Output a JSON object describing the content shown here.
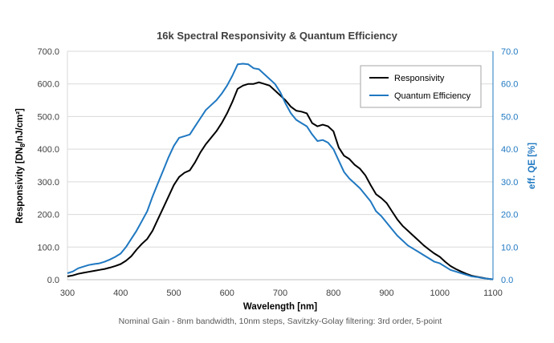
{
  "chart_data": {
    "type": "line",
    "title": "16k Spectral Responsivity & Quantum Efficiency",
    "footnote": "Nominal Gain - 8nm bandwidth, 10nm steps, Savitzky-Golay filtering: 3rd order, 5-point",
    "xlabel": "Wavelength [nm]",
    "ylabel_left_main": "Responsivity [DN",
    "ylabel_left_sub": "8",
    "ylabel_left_tail": "/nJ/cm²]",
    "ylabel_right": "eff. QE [%]",
    "xlim": [
      300,
      1100
    ],
    "xticks": [
      "300",
      "400",
      "500",
      "600",
      "700",
      "800",
      "900",
      "1000",
      "1100"
    ],
    "ylim_left": [
      0,
      700
    ],
    "yticks_left": [
      "0.0",
      "100.0",
      "200.0",
      "300.0",
      "400.0",
      "500.0",
      "600.0",
      "700.0"
    ],
    "ylim_right": [
      0,
      70
    ],
    "yticks_right": [
      "0.0",
      "10.0",
      "20.0",
      "30.0",
      "40.0",
      "50.0",
      "60.0",
      "70.0"
    ],
    "grid": "horizontal",
    "legend_position": "top-right",
    "x": [
      300,
      310,
      320,
      330,
      340,
      350,
      360,
      370,
      380,
      390,
      400,
      410,
      420,
      430,
      440,
      450,
      460,
      470,
      480,
      490,
      500,
      510,
      520,
      530,
      540,
      550,
      560,
      570,
      580,
      590,
      600,
      610,
      620,
      630,
      640,
      650,
      660,
      670,
      680,
      690,
      700,
      710,
      720,
      730,
      740,
      750,
      760,
      770,
      780,
      790,
      800,
      810,
      820,
      830,
      840,
      850,
      860,
      870,
      880,
      890,
      900,
      910,
      920,
      930,
      940,
      950,
      960,
      970,
      980,
      990,
      1000,
      1010,
      1020,
      1030,
      1040,
      1050,
      1060,
      1070,
      1080,
      1090,
      1100
    ],
    "series": [
      {
        "name": "Responsivity",
        "color": "#000000",
        "axis": "left",
        "values": [
          10,
          13,
          18,
          21,
          24,
          27,
          30,
          33,
          37,
          42,
          48,
          58,
          72,
          92,
          110,
          125,
          150,
          185,
          220,
          255,
          290,
          315,
          328,
          335,
          360,
          390,
          415,
          435,
          455,
          480,
          510,
          545,
          585,
          595,
          600,
          600,
          605,
          600,
          595,
          580,
          565,
          550,
          530,
          518,
          515,
          510,
          480,
          470,
          475,
          470,
          455,
          405,
          380,
          370,
          352,
          340,
          320,
          290,
          262,
          250,
          235,
          210,
          185,
          165,
          150,
          135,
          120,
          105,
          92,
          80,
          70,
          55,
          42,
          33,
          25,
          18,
          12,
          9,
          6,
          3,
          1
        ]
      },
      {
        "name": "Quantum Efficiency",
        "color": "#1F78C1",
        "axis": "right",
        "values": [
          2.0,
          2.5,
          3.5,
          4.0,
          4.5,
          4.8,
          5.0,
          5.5,
          6.2,
          7.0,
          8.0,
          10.0,
          12.5,
          15.0,
          18.0,
          21.0,
          25.5,
          29.5,
          33.5,
          37.5,
          41.0,
          43.5,
          44.0,
          44.5,
          47.0,
          49.5,
          52.0,
          53.5,
          55.0,
          57.0,
          59.5,
          62.5,
          66.0,
          66.2,
          66.0,
          64.8,
          64.5,
          63.0,
          61.5,
          60.0,
          57.5,
          54.0,
          51.0,
          49.0,
          48.0,
          47.0,
          44.5,
          42.5,
          42.8,
          42.0,
          40.0,
          36.5,
          33.0,
          31.0,
          29.5,
          28.0,
          26.0,
          24.0,
          21.0,
          19.5,
          17.5,
          15.5,
          13.5,
          12.0,
          10.5,
          9.5,
          8.5,
          7.5,
          6.5,
          5.5,
          5.0,
          4.0,
          3.0,
          2.5,
          2.0,
          1.5,
          1.0,
          0.8,
          0.5,
          0.3,
          0.1
        ]
      }
    ]
  }
}
